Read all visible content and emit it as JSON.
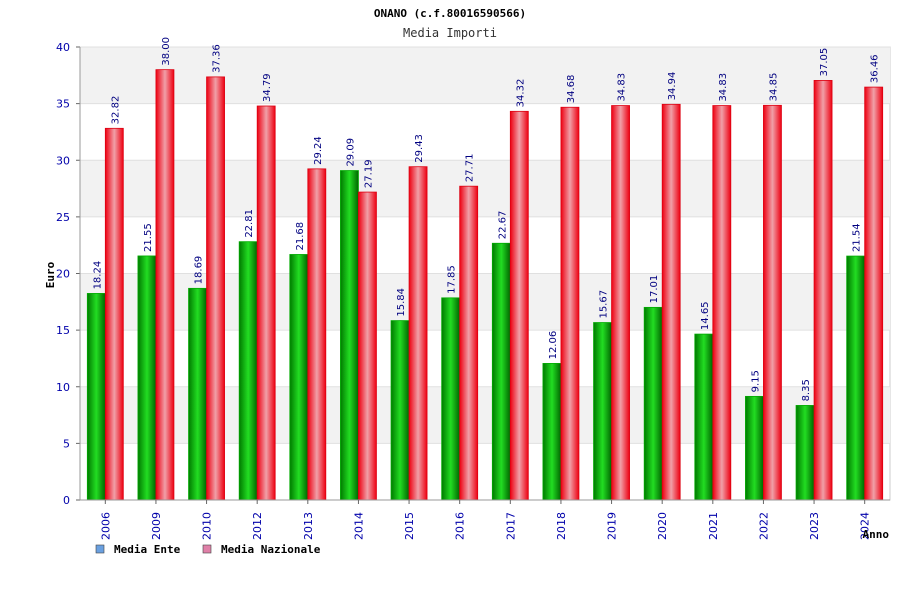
{
  "chart_data": {
    "type": "bar",
    "title": "ONANO (c.f.80016590566)",
    "subtitle": "Media Importi",
    "ylabel": "Euro",
    "xlabel": "Anno",
    "ylim": [
      0,
      40
    ],
    "yticks": [
      "0",
      "5",
      "10",
      "15",
      "20",
      "25",
      "30",
      "35",
      "40"
    ],
    "grid": true,
    "legend_position": "bottom-left",
    "categories": [
      "2006",
      "2009",
      "2010",
      "2012",
      "2013",
      "2014",
      "2015",
      "2016",
      "2017",
      "2018",
      "2019",
      "2020",
      "2021",
      "2022",
      "2023",
      "2024"
    ],
    "series": [
      {
        "name": "Media Ente",
        "color": "#00cc00",
        "legend_color": "#6aa0e0",
        "values": [
          18.24,
          21.55,
          18.69,
          22.81,
          21.68,
          29.09,
          15.84,
          17.85,
          22.67,
          12.06,
          15.67,
          17.01,
          14.65,
          9.15,
          8.35,
          21.54
        ],
        "labels": [
          "18.24",
          "21.55",
          "18.69",
          "22.81",
          "21.68",
          "29.09",
          "15.84",
          "17.85",
          "22.67",
          "12.06",
          "15.67",
          "17.01",
          "14.65",
          "9.15",
          "8.35",
          "21.54"
        ]
      },
      {
        "name": "Media Nazionale",
        "color": "#ee1122",
        "legend_color": "#e080a8",
        "values": [
          32.82,
          38.0,
          37.36,
          34.79,
          29.24,
          27.19,
          29.43,
          27.71,
          34.32,
          34.68,
          34.83,
          34.94,
          34.83,
          34.85,
          37.05,
          36.46
        ],
        "labels": [
          "32.82",
          "38.00",
          "37.36",
          "34.79",
          "29.24",
          "27.19",
          "29.43",
          "27.71",
          "34.32",
          "34.68",
          "34.83",
          "34.94",
          "34.83",
          "34.85",
          "37.05",
          "36.46"
        ]
      }
    ]
  }
}
